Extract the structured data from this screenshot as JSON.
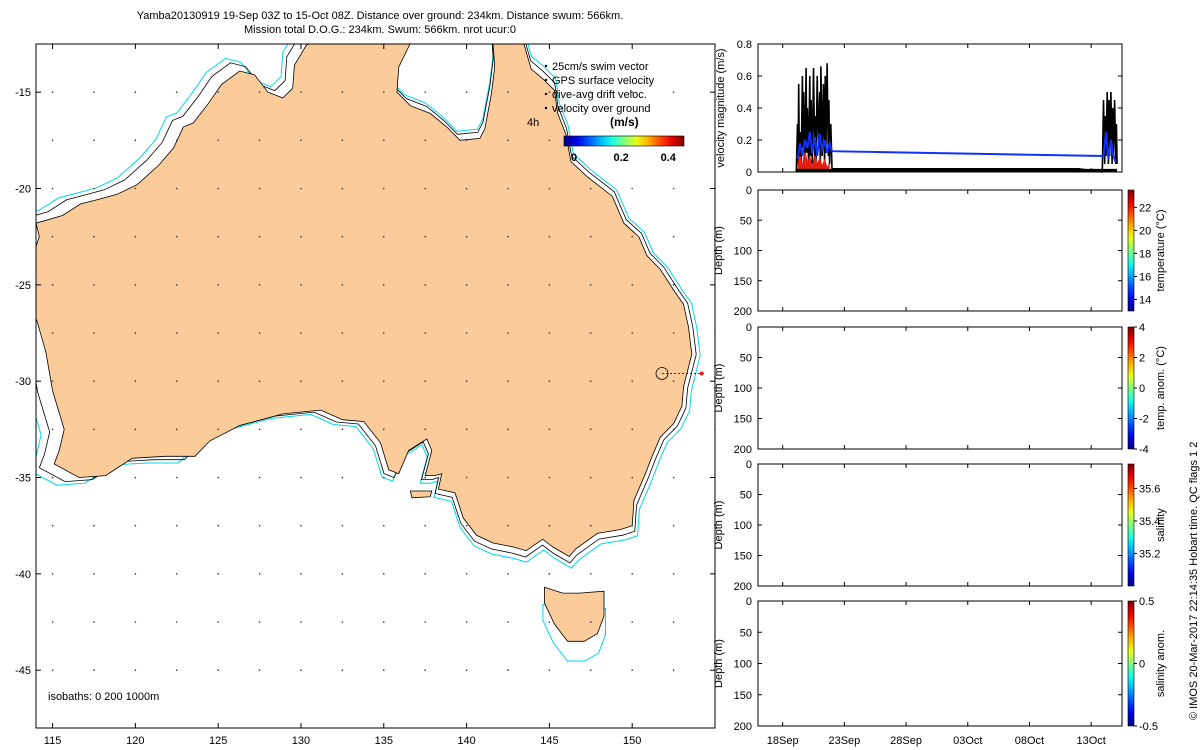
{
  "title": {
    "line1": "Yamba20130919 19-Sep 03Z to 15-Oct 08Z. Distance over ground: 234km. Distance swum: 566km.",
    "line2": "Mission total D.O.G.: 234km. Swum: 566km. nrot ucur:0"
  },
  "credit": "© IMOS 20-Mar-2017 22:14:35 Hobart time. QC flags 1  2",
  "colors": {
    "land": "#fccb9a",
    "coast": "#000000",
    "isobath_200": "#000000",
    "isobath_1000": "#00d8e8",
    "gps_velocity": "#000000",
    "drift_velocity": "#1030ff",
    "surface": "#e02010"
  },
  "chart_data": [
    {
      "type": "map",
      "name": "track-map",
      "xlim": [
        114,
        155
      ],
      "ylim": [
        -48,
        -12.5
      ],
      "xticks": [
        115,
        120,
        125,
        130,
        135,
        140,
        145,
        150
      ],
      "yticks": [
        -15,
        -20,
        -25,
        -30,
        -35,
        -40,
        -45
      ],
      "legend": {
        "placement": "top-right",
        "entries": [
          "25cm/s swim vector",
          "GPS surface velocity",
          "dive-avg drift veloc.",
          "velocity over ground"
        ],
        "time_label": "4h",
        "colorbar_label": "(m/s)",
        "colorbar_ticks": [
          0,
          0.2,
          0.4
        ]
      },
      "isobaths_label": "isobaths: 0   200  1000m",
      "glider_position": {
        "lon": 151.8,
        "lat": -29.6
      },
      "track_end": {
        "lon": 154.2,
        "lat": -29.6
      }
    },
    {
      "type": "line",
      "name": "velocity-plot",
      "ylabel": "velocity magnitude (m/s)",
      "ylim": [
        0,
        0.8
      ],
      "yticks": [
        0,
        0.2,
        0.4,
        0.6,
        0.8
      ],
      "xlim": [
        16.0,
        45.5
      ],
      "xticks": [
        18,
        23,
        28,
        33,
        38,
        43
      ],
      "xticklabels": [
        "18Sep",
        "23Sep",
        "28Sep",
        "03Oct",
        "08Oct",
        "13Oct"
      ],
      "series": [
        {
          "x": [
            19.1,
            19.2,
            19.25,
            19.3,
            19.35,
            19.4,
            19.5,
            19.6,
            19.65,
            19.7,
            19.8,
            19.9,
            19.95,
            20.0,
            20.1,
            20.2,
            20.25,
            20.3,
            20.4,
            20.5,
            20.6,
            20.65,
            20.7,
            20.8,
            20.9,
            21.0,
            21.05,
            21.1,
            21.2,
            21.3,
            21.4,
            21.45,
            21.5,
            21.6,
            21.7,
            21.75,
            21.8,
            21.9,
            22.0,
            42.0,
            43.9,
            44.0,
            44.1,
            44.15,
            44.2,
            44.3,
            44.4,
            44.45,
            44.5,
            44.6,
            44.7,
            44.75,
            44.8,
            44.9,
            45.0,
            45.05,
            45.1
          ],
          "y": [
            0.0,
            0.3,
            0.05,
            0.55,
            0.1,
            0.25,
            0.05,
            0.6,
            0.15,
            0.5,
            0.05,
            0.65,
            0.12,
            0.4,
            0.05,
            0.6,
            0.1,
            0.45,
            0.05,
            0.65,
            0.1,
            0.35,
            0.05,
            0.6,
            0.15,
            0.5,
            0.05,
            0.66,
            0.1,
            0.55,
            0.05,
            0.6,
            0.12,
            0.68,
            0.1,
            0.45,
            0.05,
            0.3,
            0.02,
            0.02,
            0.0,
            0.45,
            0.05,
            0.35,
            0.1,
            0.5,
            0.05,
            0.45,
            0.1,
            0.5,
            0.05,
            0.4,
            0.1,
            0.45,
            0.05,
            0.3,
            0.05
          ]
        },
        {
          "x": [
            19.2,
            19.4,
            19.6,
            19.8,
            20.0,
            20.2,
            20.4,
            20.6,
            20.8,
            21.0,
            21.2,
            21.4,
            21.6,
            21.8,
            22.0,
            44.0,
            44.2,
            44.4,
            44.6,
            44.8,
            45.0
          ],
          "y": [
            0.08,
            0.18,
            0.1,
            0.2,
            0.15,
            0.25,
            0.12,
            0.22,
            0.1,
            0.24,
            0.13,
            0.2,
            0.12,
            0.18,
            0.13,
            0.1,
            0.25,
            0.08,
            0.2,
            0.1,
            0.06
          ]
        },
        {
          "x": [
            19.2,
            19.4,
            19.6,
            19.8,
            20.0,
            20.2,
            20.4,
            20.6,
            20.8,
            21.0,
            21.2,
            21.4,
            21.6,
            21.8
          ],
          "y": [
            0.04,
            0.1,
            0.03,
            0.12,
            0.05,
            0.09,
            0.02,
            0.1,
            0.04,
            0.08,
            0.03,
            0.07,
            0.02,
            0.05
          ]
        }
      ]
    },
    {
      "type": "heatmap",
      "name": "temperature-section",
      "ylabel": "Depth (m)",
      "ylim": [
        200,
        0
      ],
      "yticks": [
        0,
        50,
        100,
        150,
        200
      ],
      "colorbar_label": "temperature (°C)",
      "colorbar_ticks": [
        14,
        16,
        18,
        20,
        22
      ],
      "colorbar_range": [
        13,
        23.5
      ]
    },
    {
      "type": "heatmap",
      "name": "temp-anomaly-section",
      "ylabel": "Depth (m)",
      "ylim": [
        200,
        0
      ],
      "yticks": [
        0,
        50,
        100,
        150,
        200
      ],
      "colorbar_label": "temp. anom. (°C)",
      "colorbar_ticks": [
        -4,
        -2,
        0,
        2,
        4
      ],
      "colorbar_range": [
        -4,
        4
      ]
    },
    {
      "type": "heatmap",
      "name": "salinity-section",
      "ylabel": "Depth (m)",
      "ylim": [
        200,
        0
      ],
      "yticks": [
        0,
        50,
        100,
        150,
        200
      ],
      "colorbar_label": "salinity",
      "colorbar_ticks": [
        35.2,
        35.4,
        35.6
      ],
      "colorbar_range": [
        35.0,
        35.75
      ]
    },
    {
      "type": "heatmap",
      "name": "salinity-anomaly-section",
      "ylabel": "Depth (m)",
      "ylim": [
        200,
        0
      ],
      "yticks": [
        0,
        50,
        100,
        150,
        200
      ],
      "colorbar_label": "salinity anom.",
      "colorbar_ticks": [
        -0.5,
        0,
        0.5
      ],
      "colorbar_range": [
        -0.5,
        0.5
      ]
    }
  ]
}
